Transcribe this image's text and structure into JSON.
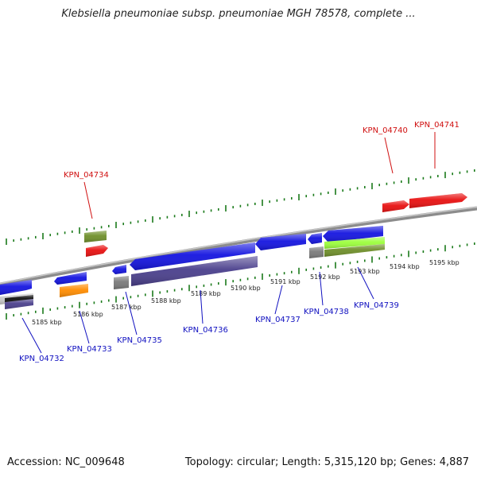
{
  "title": "Klebsiella pneumoniae subsp. pneumoniae MGH 78578, complete ...",
  "footer": {
    "accession": "Accession: NC_009648",
    "info": "Topology: circular; Length: 5,315,120 bp; Genes: 4,887"
  },
  "colors": {
    "backbone": "#8c8c8c",
    "forward_tick": "#1a7a1a",
    "forward_label": "#d01010",
    "reverse_label": "#1010c0",
    "gene_red": "#e81010",
    "gene_blue": "#1414e0",
    "gene_darkslate": "#4a3f8c",
    "gene_olive": "#6f8f2a",
    "gene_gray": "#7a7a7a",
    "gene_orange": "#ff8c00",
    "gene_lime": "#9cff3c"
  },
  "scale": {
    "ticks": [
      "5185 kbp",
      "5186 kbp",
      "5187 kbp",
      "5188 kbp",
      "5189 kbp",
      "5190 kbp",
      "5191 kbp",
      "5192 kbp",
      "5193 kbp",
      "5194 kbp",
      "5195 kbp"
    ]
  },
  "gene_labels": [
    {
      "id": "KPN_04732",
      "strand": "reverse"
    },
    {
      "id": "KPN_04733",
      "strand": "reverse"
    },
    {
      "id": "KPN_04734",
      "strand": "forward"
    },
    {
      "id": "KPN_04735",
      "strand": "reverse"
    },
    {
      "id": "KPN_04736",
      "strand": "reverse"
    },
    {
      "id": "KPN_04737",
      "strand": "reverse"
    },
    {
      "id": "KPN_04738",
      "strand": "reverse"
    },
    {
      "id": "KPN_04739",
      "strand": "reverse"
    },
    {
      "id": "KPN_04740",
      "strand": "forward"
    },
    {
      "id": "KPN_04741",
      "strand": "forward"
    }
  ]
}
